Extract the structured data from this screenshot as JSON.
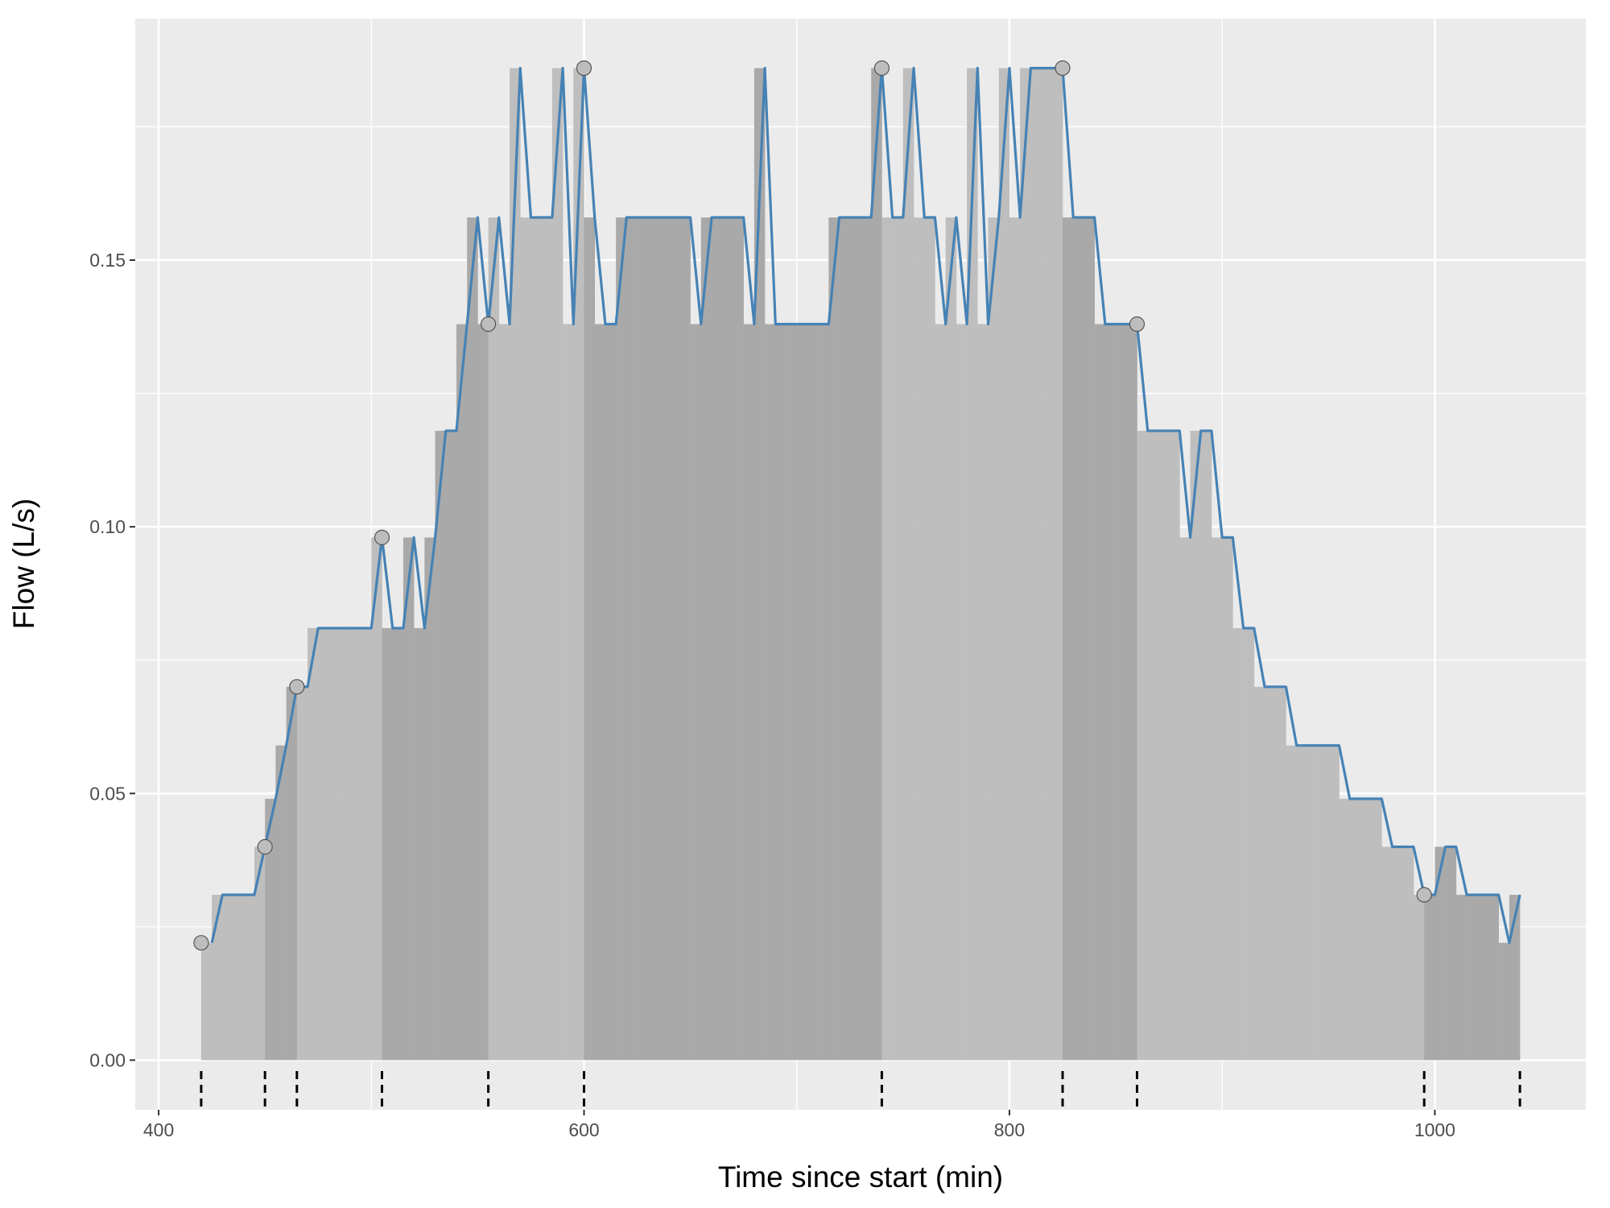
{
  "chart_data": {
    "type": "bar_line",
    "x_label": "Time since start (min)",
    "y_label": "Flow (L/s)",
    "xlim": [
      389,
      1071
    ],
    "ylim": [
      -0.0093,
      0.1953
    ],
    "xticks": [
      400,
      600,
      800,
      1000
    ],
    "yticks": [
      {
        "value": 0,
        "label": "0.00"
      },
      0.05,
      {
        "value": 0.1,
        "label": "0.10"
      },
      0.15
    ],
    "grid": true,
    "bar_colors": [
      "#bebebe",
      "#a9a9a9"
    ],
    "line_color": "#4682b4",
    "point_color": "#bdbdbd",
    "x": [
      420,
      425,
      430,
      435,
      440,
      445,
      450,
      455,
      460,
      465,
      470,
      475,
      480,
      485,
      490,
      495,
      500,
      505,
      510,
      515,
      520,
      525,
      530,
      535,
      540,
      545,
      550,
      555,
      560,
      565,
      570,
      575,
      580,
      585,
      590,
      595,
      600,
      605,
      610,
      615,
      620,
      625,
      630,
      635,
      640,
      645,
      650,
      655,
      660,
      665,
      670,
      675,
      680,
      685,
      690,
      695,
      700,
      705,
      710,
      715,
      720,
      725,
      730,
      735,
      740,
      745,
      750,
      755,
      760,
      765,
      770,
      775,
      780,
      785,
      790,
      795,
      800,
      805,
      810,
      815,
      820,
      825,
      830,
      835,
      840,
      845,
      850,
      855,
      860,
      865,
      870,
      875,
      880,
      885,
      890,
      895,
      900,
      905,
      910,
      915,
      920,
      925,
      930,
      935,
      940,
      945,
      950,
      955,
      960,
      965,
      970,
      975,
      980,
      985,
      990,
      995,
      1000,
      1005,
      1010,
      1015,
      1020,
      1025,
      1030,
      1035
    ],
    "values": [
      0.022,
      0.031,
      0.031,
      0.031,
      0.031,
      0.04,
      0.049,
      0.059,
      0.07,
      0.07,
      0.081,
      0.081,
      0.081,
      0.081,
      0.081,
      0.081,
      0.098,
      0.081,
      0.081,
      0.098,
      0.081,
      0.098,
      0.118,
      0.118,
      0.138,
      0.158,
      0.138,
      0.158,
      0.138,
      0.186,
      0.158,
      0.158,
      0.158,
      0.186,
      0.138,
      0.186,
      0.158,
      0.138,
      0.138,
      0.158,
      0.158,
      0.158,
      0.158,
      0.158,
      0.158,
      0.158,
      0.138,
      0.158,
      0.158,
      0.158,
      0.158,
      0.138,
      0.186,
      0.138,
      0.138,
      0.138,
      0.138,
      0.138,
      0.138,
      0.158,
      0.158,
      0.158,
      0.158,
      0.186,
      0.158,
      0.158,
      0.186,
      0.158,
      0.158,
      0.138,
      0.158,
      0.138,
      0.186,
      0.138,
      0.158,
      0.186,
      0.158,
      0.186,
      0.186,
      0.186,
      0.186,
      0.158,
      0.158,
      0.158,
      0.138,
      0.138,
      0.138,
      0.138,
      0.118,
      0.118,
      0.118,
      0.118,
      0.098,
      0.118,
      0.118,
      0.098,
      0.098,
      0.081,
      0.081,
      0.07,
      0.07,
      0.07,
      0.059,
      0.059,
      0.059,
      0.059,
      0.059,
      0.049,
      0.049,
      0.049,
      0.049,
      0.04,
      0.04,
      0.04,
      0.031,
      0.031,
      0.04,
      0.04,
      0.031,
      0.031,
      0.031,
      0.031,
      0.022,
      0.031
    ],
    "points": {
      "x": [
        420,
        450,
        465,
        505,
        555,
        600,
        740,
        825,
        860,
        995
      ],
      "y": [
        0.022,
        0.04,
        0.07,
        0.098,
        0.138,
        0.186,
        0.186,
        0.186,
        0.138,
        0.031
      ]
    },
    "rug": [
      420,
      450,
      465,
      505,
      555,
      600,
      740,
      825,
      860,
      995,
      1040
    ]
  }
}
